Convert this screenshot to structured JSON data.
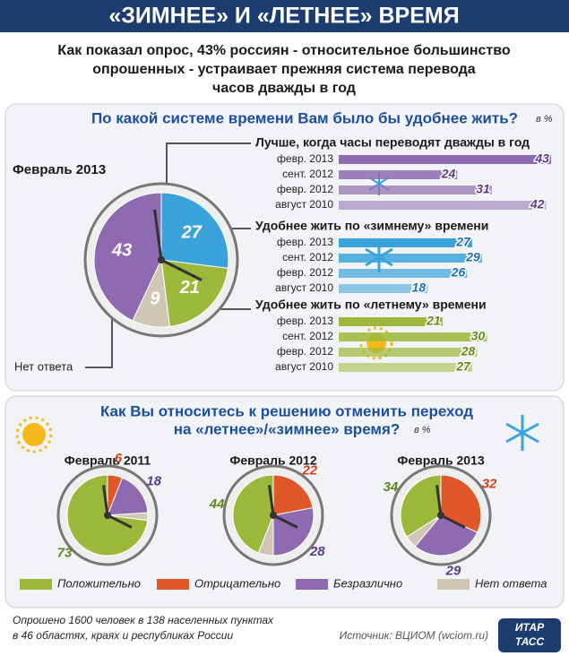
{
  "title": "«ЗИМНЕЕ» И «ЛЕТНЕЕ» ВРЕМЯ",
  "subtitle": [
    "Как показал опрос, 43% россиян - относительное большинство",
    "опрошенных - устраивает прежняя система перевода",
    "часов дважды в год"
  ],
  "section1": {
    "title": "По какой системе времени Вам было бы удобнее жить?",
    "unit": "в %"
  },
  "chart_data": [
    {
      "type": "pie",
      "title": "Февраль 2013",
      "categories": [
        null,
        null,
        null,
        "Нет ответа"
      ],
      "values": [
        43,
        27,
        21,
        9
      ],
      "colors": [
        "#8e6bb0",
        "#3aa3dc",
        "#9cb83a",
        "#cfc6b4"
      ]
    },
    {
      "type": "hbar",
      "categories": [
        "февр. 2013",
        "сент. 2012",
        "февр. 2012",
        "август 2010"
      ],
      "xlim": [
        0,
        45
      ],
      "series": [
        {
          "name": "Лучше, когда часы переводят дважды в год",
          "color": "#8e6bb0",
          "values": [
            43,
            24,
            31,
            42
          ]
        },
        {
          "name": "Удобнее жить по «зимнему» времени",
          "color": "#3aa3dc",
          "values": [
            27,
            29,
            26,
            18
          ]
        },
        {
          "name": "Удобнее жить по «летнему» времени",
          "color": "#9cb83a",
          "values": [
            21,
            30,
            28,
            27
          ]
        }
      ]
    },
    {
      "type": "pie",
      "title": [
        "Как Вы относитесь к решению отменить переход",
        "на «летнее»/«зимнее» время?"
      ],
      "unit": "в %",
      "categories": [
        "Положительно",
        "Отрицательно",
        "Безразлично",
        "Нет ответа"
      ],
      "colors": [
        "#9cb83a",
        "#e0572a",
        "#8e6bb0",
        "#cfc6b4"
      ],
      "series": [
        {
          "name": "Февраль 2011",
          "values": [
            73,
            6,
            18,
            3
          ]
        },
        {
          "name": "Февраль 2012",
          "values": [
            44,
            22,
            28,
            6
          ]
        },
        {
          "name": "Февраль 2013",
          "values": [
            34,
            32,
            29,
            5
          ]
        }
      ]
    }
  ],
  "footer": {
    "note": [
      "Опрошено 1600 человек в 138 населенных пунктах",
      "в 46 областях, краях и республиках России"
    ],
    "source": "Источник: ВЦИОМ (wciom.ru)",
    "logo": [
      "ИТАР",
      "ТАСС"
    ]
  }
}
